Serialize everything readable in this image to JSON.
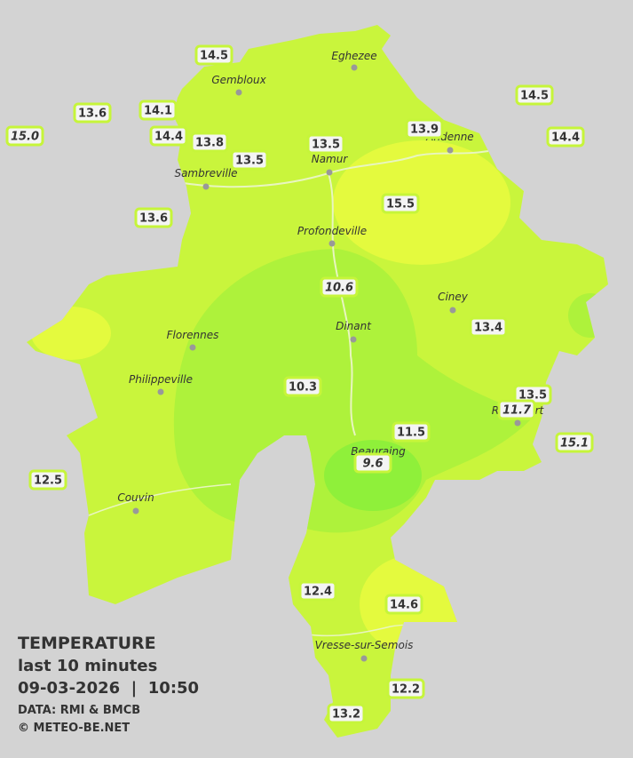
{
  "legend": {
    "title": "TEMPERATURE",
    "period": "last 10 minutes",
    "timestamp": "09-03-2026  |  10:50",
    "source": "DATA: RMI & BMCB",
    "credit": "© METEO-BE.NET"
  },
  "towns": [
    "Eghezee",
    "Gembloux",
    "Andenne",
    "Namur",
    "Sambreville",
    "Profondeville",
    "Ciney",
    "Dinant",
    "Florennes",
    "Philippeville",
    "Rochefort",
    "Beauraing",
    "Couvin",
    "Vresse-sur-Semois"
  ],
  "stations": [
    "14.5",
    "13.6",
    "14.1",
    "15.0",
    "14.4",
    "13.8",
    "13.5",
    "13.5",
    "13.9",
    "14.5",
    "14.4",
    "13.6",
    "15.5",
    "10.6",
    "13.4",
    "10.3",
    "13.5",
    "11.7",
    "11.5",
    "15.1",
    "9.6",
    "12.5",
    "12.4",
    "14.6",
    "12.2",
    "13.2"
  ]
}
